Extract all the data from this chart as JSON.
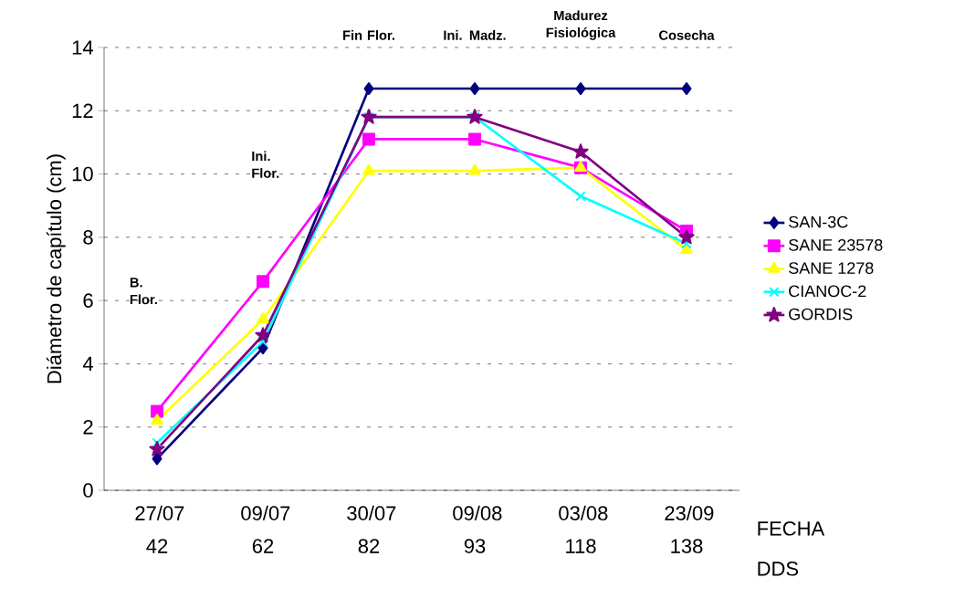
{
  "chart_data": {
    "type": "line",
    "categories": [
      "27/07 42",
      "09/07 62",
      "30/07 82",
      "09/08 93",
      "03/08 118",
      "23/09 138"
    ],
    "xlabel": "FECHA DDS",
    "ylabel": "Diámetro de capítulo (cm)",
    "ylim": [
      0,
      14
    ],
    "yticks": [
      0,
      2,
      4,
      6,
      8,
      10,
      12,
      14
    ],
    "grid": "y",
    "legend": "right",
    "annotations": [
      "B. Flor.",
      "Ini. Flor.",
      "Fin Flor.",
      "Ini. Madz.",
      "Madurez Fisiológica",
      "Cosecha"
    ],
    "series": [
      {
        "name": "SAN-3C",
        "color": "#000080",
        "marker": "diamond",
        "values": [
          1.0,
          4.5,
          12.7,
          12.7,
          12.7,
          12.7
        ]
      },
      {
        "name": "SANE 23578",
        "color": "#ff00ff",
        "marker": "square",
        "values": [
          2.5,
          6.6,
          11.1,
          11.1,
          10.2,
          8.2
        ]
      },
      {
        "name": "SANE 1278",
        "color": "#ffff00",
        "marker": "triangle",
        "values": [
          2.2,
          5.4,
          10.1,
          10.1,
          10.2,
          7.6
        ]
      },
      {
        "name": "CIANOC-2",
        "color": "#00ffff",
        "marker": "cross",
        "values": [
          1.5,
          4.7,
          11.8,
          11.8,
          9.3,
          7.8
        ]
      },
      {
        "name": "GORDIS",
        "color": "#800080",
        "marker": "star",
        "values": [
          1.3,
          4.9,
          11.8,
          11.8,
          10.7,
          8.0
        ]
      }
    ]
  }
}
